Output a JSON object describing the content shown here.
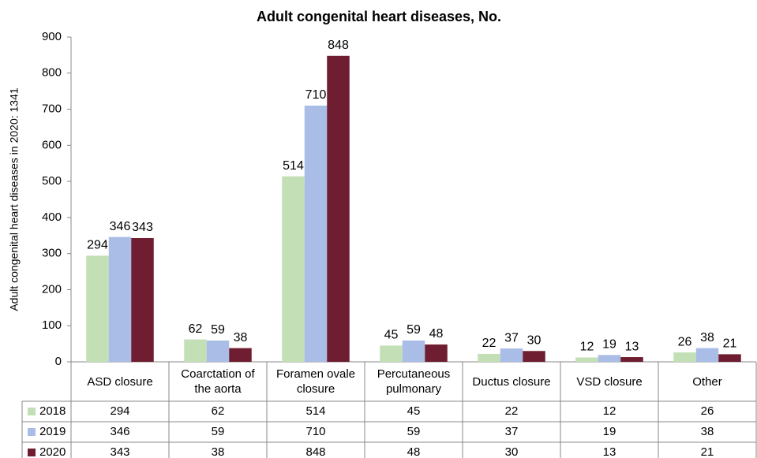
{
  "chart_data": {
    "type": "bar",
    "title": "Adult congenital heart diseases, No.",
    "y_label": "Adult congenital heart diseases in 2020: 1341",
    "categories": [
      "ASD closure",
      "Coarctation of the aorta",
      "Foramen ovale closure",
      "Percutaneous pulmonary",
      "Ductus closure",
      "VSD closure",
      "Other"
    ],
    "series": [
      {
        "name": "2018",
        "color": "#c3dfb5",
        "values": [
          294,
          62,
          514,
          45,
          22,
          12,
          26
        ]
      },
      {
        "name": "2019",
        "color": "#a9bde6",
        "values": [
          346,
          59,
          710,
          59,
          37,
          19,
          38
        ]
      },
      {
        "name": "2020",
        "color": "#6e1e30",
        "values": [
          343,
          38,
          848,
          48,
          30,
          13,
          21
        ]
      }
    ],
    "ylim": [
      0,
      900
    ],
    "yticks": [
      0,
      100,
      200,
      300,
      400,
      500,
      600,
      700,
      800,
      900
    ]
  }
}
